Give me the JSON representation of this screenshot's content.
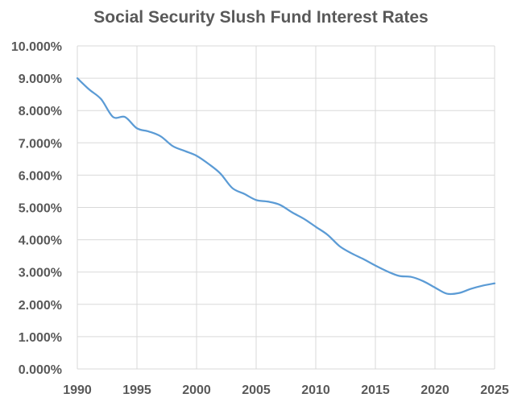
{
  "chart_data": {
    "type": "line",
    "title": "Social Security Slush Fund Interest Rates",
    "xlabel": "",
    "ylabel": "",
    "xlim": [
      1990,
      2025
    ],
    "ylim": [
      0,
      10
    ],
    "x_ticks": [
      1990,
      1995,
      2000,
      2005,
      2010,
      2015,
      2020,
      2025
    ],
    "x_tick_labels": [
      "1990",
      "1995",
      "2000",
      "2005",
      "2010",
      "2015",
      "2020",
      "2025"
    ],
    "y_ticks": [
      0,
      1,
      2,
      3,
      4,
      5,
      6,
      7,
      8,
      9,
      10
    ],
    "y_tick_labels": [
      "0.000%",
      "1.000%",
      "2.000%",
      "3.000%",
      "4.000%",
      "5.000%",
      "6.000%",
      "7.000%",
      "8.000%",
      "9.000%",
      "10.000%"
    ],
    "grid": true,
    "legend": "none",
    "series": [
      {
        "color": "#5b9bd5",
        "x": [
          1990,
          1991,
          1992,
          1993,
          1994,
          1995,
          1996,
          1997,
          1998,
          1999,
          2000,
          2001,
          2002,
          2003,
          2004,
          2005,
          2006,
          2007,
          2008,
          2009,
          2010,
          2011,
          2012,
          2013,
          2014,
          2015,
          2016,
          2017,
          2018,
          2019,
          2020,
          2021,
          2022,
          2023,
          2024,
          2025
        ],
        "values": [
          9.0,
          8.65,
          8.35,
          7.8,
          7.8,
          7.45,
          7.35,
          7.2,
          6.9,
          6.75,
          6.6,
          6.35,
          6.05,
          5.6,
          5.42,
          5.23,
          5.18,
          5.08,
          4.85,
          4.65,
          4.4,
          4.15,
          3.8,
          3.58,
          3.4,
          3.2,
          3.02,
          2.88,
          2.85,
          2.72,
          2.52,
          2.33,
          2.35,
          2.48,
          2.58,
          2.65
        ]
      }
    ]
  },
  "colors": {
    "line": "#5b9bd5",
    "grid": "#d9d9d9",
    "text": "#595959"
  }
}
